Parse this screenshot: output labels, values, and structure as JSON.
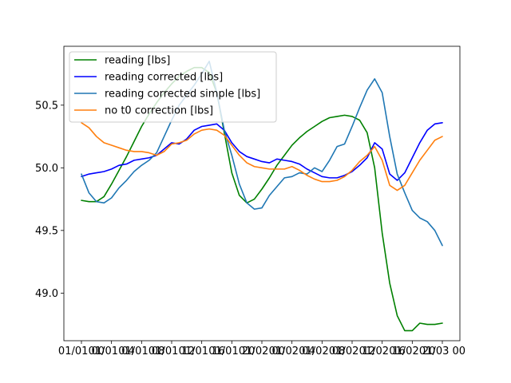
{
  "chart_data": {
    "type": "line",
    "title": "",
    "xlabel": "",
    "ylabel": "",
    "grid": false,
    "legend_position": "top-left",
    "xlim": [
      0,
      48
    ],
    "ylim": [
      48.62,
      50.97
    ],
    "x_ticks": [
      {
        "value": 0,
        "label": "01/01 00"
      },
      {
        "value": 4,
        "label": "01/01 04"
      },
      {
        "value": 8,
        "label": "01/01 08"
      },
      {
        "value": 12,
        "label": "01/01 12"
      },
      {
        "value": 16,
        "label": "01/01 16"
      },
      {
        "value": 20,
        "label": "01/01 20"
      },
      {
        "value": 24,
        "label": "01/02 00"
      },
      {
        "value": 28,
        "label": "01/02 04"
      },
      {
        "value": 32,
        "label": "01/02 08"
      },
      {
        "value": 36,
        "label": "01/02 12"
      },
      {
        "value": 40,
        "label": "01/02 16"
      },
      {
        "value": 44,
        "label": "01/02 20"
      },
      {
        "value": 48,
        "label": "01/03 00"
      }
    ],
    "y_ticks": [
      {
        "value": 49.0,
        "label": "49.0"
      },
      {
        "value": 49.5,
        "label": "49.5"
      },
      {
        "value": 50.0,
        "label": "50.0"
      },
      {
        "value": 50.5,
        "label": "50.5"
      }
    ],
    "series": [
      {
        "name": "reading [lbs]",
        "color": "#008000",
        "x": [
          0,
          1,
          2,
          3,
          4,
          5,
          6,
          7,
          8,
          9,
          10,
          11,
          12,
          13,
          14,
          15,
          16,
          17,
          18,
          19,
          20,
          21,
          22,
          23,
          24,
          25,
          26,
          27,
          28,
          29,
          30,
          31,
          32,
          33,
          34,
          35,
          36,
          37,
          38,
          39,
          40,
          41,
          42,
          43,
          44,
          45,
          46,
          47,
          48
        ],
        "values": [
          49.74,
          49.73,
          49.73,
          49.77,
          49.87,
          49.98,
          50.09,
          50.21,
          50.33,
          50.43,
          50.52,
          50.6,
          50.67,
          50.73,
          50.77,
          50.8,
          50.8,
          50.76,
          50.6,
          50.28,
          49.96,
          49.78,
          49.72,
          49.75,
          49.83,
          49.92,
          50.02,
          50.1,
          50.18,
          50.24,
          50.29,
          50.33,
          50.37,
          50.4,
          50.41,
          50.42,
          50.41,
          50.38,
          50.28,
          50.0,
          49.48,
          49.08,
          48.82,
          48.7,
          48.7,
          48.76,
          48.75,
          48.75,
          48.76
        ]
      },
      {
        "name": "reading corrected [lbs]",
        "color": "#0000ff",
        "x": [
          0,
          1,
          2,
          3,
          4,
          5,
          6,
          7,
          8,
          9,
          10,
          11,
          12,
          13,
          14,
          15,
          16,
          17,
          18,
          19,
          20,
          21,
          22,
          23,
          24,
          25,
          26,
          27,
          28,
          29,
          30,
          31,
          32,
          33,
          34,
          35,
          36,
          37,
          38,
          39,
          40,
          41,
          42,
          43,
          44,
          45,
          46,
          47,
          48
        ],
        "values": [
          49.93,
          49.95,
          49.96,
          49.97,
          49.99,
          50.02,
          50.03,
          50.06,
          50.07,
          50.08,
          50.1,
          50.15,
          50.2,
          50.19,
          50.23,
          50.3,
          50.33,
          50.34,
          50.35,
          50.3,
          50.2,
          50.13,
          50.09,
          50.07,
          50.05,
          50.04,
          50.07,
          50.06,
          50.05,
          50.03,
          49.99,
          49.96,
          49.93,
          49.92,
          49.92,
          49.94,
          49.97,
          50.02,
          50.08,
          50.2,
          50.15,
          49.95,
          49.9,
          49.96,
          50.08,
          50.2,
          50.3,
          50.35,
          50.36
        ]
      },
      {
        "name": "reading corrected simple [lbs]",
        "color": "#1f77b4",
        "x": [
          0,
          1,
          2,
          3,
          4,
          5,
          6,
          7,
          8,
          9,
          10,
          11,
          12,
          13,
          14,
          15,
          16,
          17,
          18,
          19,
          20,
          21,
          22,
          23,
          24,
          25,
          26,
          27,
          28,
          29,
          30,
          31,
          32,
          33,
          34,
          35,
          36,
          37,
          38,
          39,
          40,
          41,
          42,
          43,
          44,
          45,
          46,
          47,
          48
        ],
        "values": [
          49.95,
          49.8,
          49.73,
          49.72,
          49.76,
          49.84,
          49.9,
          49.97,
          50.02,
          50.06,
          50.12,
          50.25,
          50.38,
          50.5,
          50.58,
          50.66,
          50.75,
          50.85,
          50.6,
          50.3,
          50.1,
          49.87,
          49.72,
          49.67,
          49.68,
          49.78,
          49.85,
          49.92,
          49.93,
          49.96,
          49.95,
          50.0,
          49.97,
          50.06,
          50.17,
          50.19,
          50.33,
          50.48,
          50.62,
          50.71,
          50.6,
          50.25,
          49.95,
          49.8,
          49.66,
          49.6,
          49.57,
          49.5,
          49.38
        ]
      },
      {
        "name": "no t0 correction [lbs]",
        "color": "#ff7f0e",
        "x": [
          0,
          1,
          2,
          3,
          4,
          5,
          6,
          7,
          8,
          9,
          10,
          11,
          12,
          13,
          14,
          15,
          16,
          17,
          18,
          19,
          20,
          21,
          22,
          23,
          24,
          25,
          26,
          27,
          28,
          29,
          30,
          31,
          32,
          33,
          34,
          35,
          36,
          37,
          38,
          39,
          40,
          41,
          42,
          43,
          44,
          45,
          46,
          47,
          48
        ],
        "values": [
          50.36,
          50.32,
          50.25,
          50.2,
          50.18,
          50.16,
          50.14,
          50.13,
          50.13,
          50.12,
          50.1,
          50.13,
          50.19,
          50.2,
          50.22,
          50.27,
          50.3,
          50.31,
          50.3,
          50.26,
          50.18,
          50.1,
          50.04,
          50.01,
          50.0,
          49.99,
          49.99,
          49.99,
          50.01,
          49.98,
          49.94,
          49.91,
          49.89,
          49.89,
          49.9,
          49.93,
          49.98,
          50.05,
          50.1,
          50.17,
          50.06,
          49.86,
          49.82,
          49.86,
          49.96,
          50.06,
          50.14,
          50.22,
          50.25
        ]
      }
    ]
  }
}
